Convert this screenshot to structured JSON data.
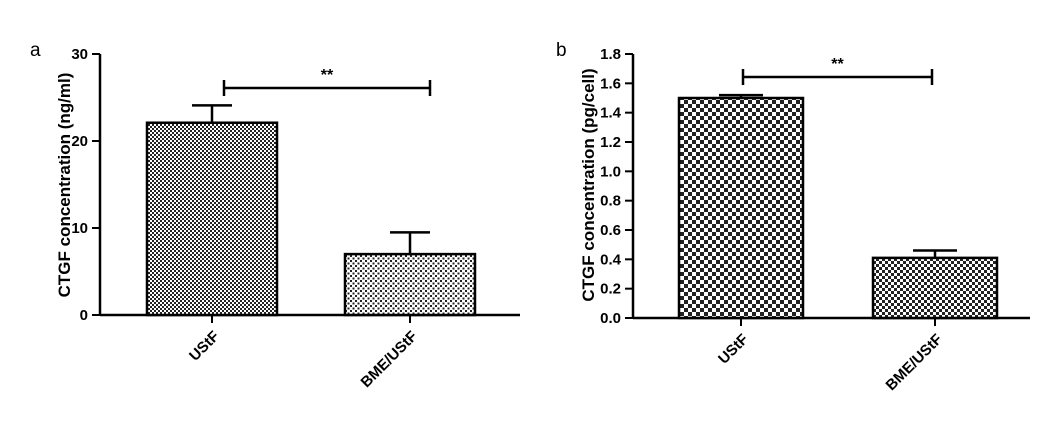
{
  "chart_data": [
    {
      "type": "bar",
      "panel": "a",
      "ylabel": "CTGF concentration (ng/ml)",
      "categories": [
        "UStF",
        "BME/UStF"
      ],
      "values": [
        22.1,
        7.0
      ],
      "errors": [
        2.0,
        2.5
      ],
      "ylim": [
        0,
        30
      ],
      "yticks": [
        0,
        10,
        20,
        30
      ],
      "significance": {
        "label": "**",
        "from": 0,
        "to": 1
      },
      "grid": false
    },
    {
      "type": "bar",
      "panel": "b",
      "ylabel": "CTGF concentration (pg/cell)",
      "categories": [
        "UStF",
        "BME/UStF"
      ],
      "values": [
        1.5,
        0.41
      ],
      "errors": [
        0.02,
        0.05
      ],
      "ylim": [
        0,
        1.8
      ],
      "yticks": [
        "0.0",
        "0.2",
        "0.4",
        "0.6",
        "0.8",
        "1.0",
        "1.2",
        "1.4",
        "1.6",
        "1.8"
      ],
      "significance": {
        "label": "**",
        "from": 0,
        "to": 1
      },
      "grid": false
    }
  ]
}
